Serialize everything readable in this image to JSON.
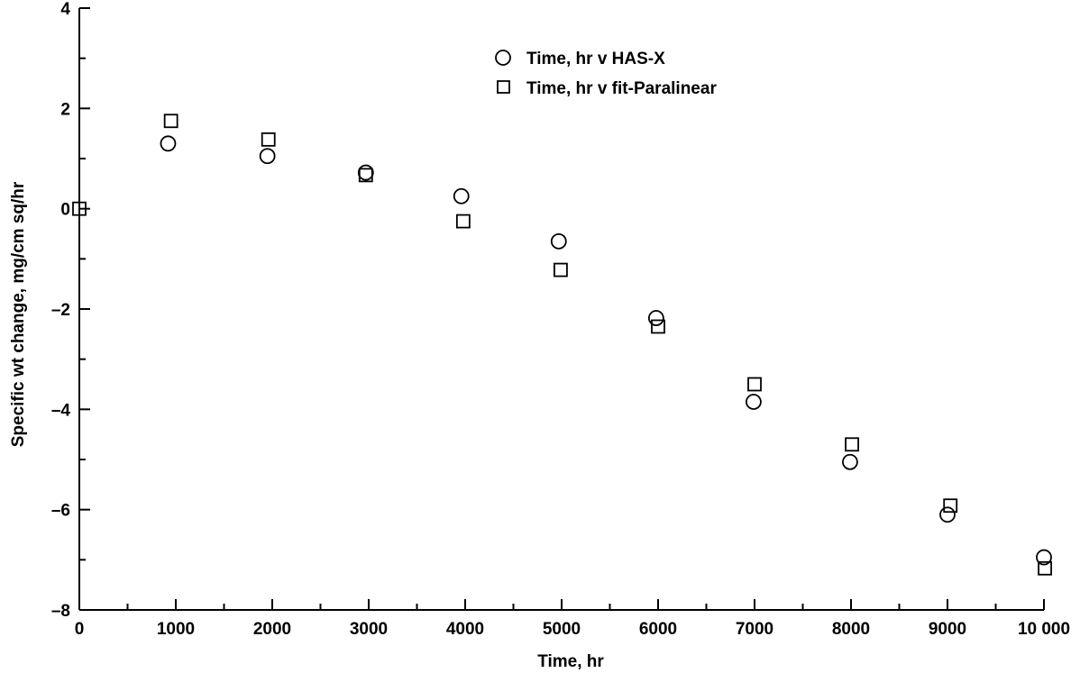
{
  "chart_data": {
    "type": "scatter",
    "xlabel": "Time, hr",
    "ylabel": "Specific wt change, mg/cm sq/hr",
    "xlim": [
      0,
      10000
    ],
    "ylim": [
      -8,
      4
    ],
    "x_ticks": [
      0,
      1000,
      2000,
      3000,
      4000,
      5000,
      6000,
      7000,
      8000,
      9000,
      10000
    ],
    "x_tick_labels": [
      "0",
      "1000",
      "2000",
      "3000",
      "4000",
      "5000",
      "6000",
      "7000",
      "8000",
      "9000",
      "10 000"
    ],
    "y_ticks": [
      -8,
      -6,
      -4,
      -2,
      0,
      2,
      4
    ],
    "y_tick_labels": [
      "–8",
      "–6",
      "–4",
      "–2",
      "0",
      "2",
      "4"
    ],
    "grid": false,
    "legend_position": "top-center",
    "series": [
      {
        "name": "Time, hr v HAS-X",
        "marker": "circle",
        "x": [
          920,
          1950,
          2970,
          3960,
          4970,
          5980,
          6990,
          7990,
          9000,
          10000
        ],
        "y": [
          1.3,
          1.05,
          0.72,
          0.25,
          -0.65,
          -2.18,
          -3.85,
          -5.05,
          -6.1,
          -6.95
        ]
      },
      {
        "name": "Time, hr v fit-Paralinear",
        "marker": "square",
        "x": [
          0,
          950,
          1960,
          2970,
          3980,
          4990,
          6000,
          7000,
          8010,
          9030,
          10010
        ],
        "y": [
          0.0,
          1.75,
          1.38,
          0.67,
          -0.25,
          -1.22,
          -2.35,
          -3.5,
          -4.7,
          -5.92,
          -7.17
        ]
      }
    ]
  }
}
